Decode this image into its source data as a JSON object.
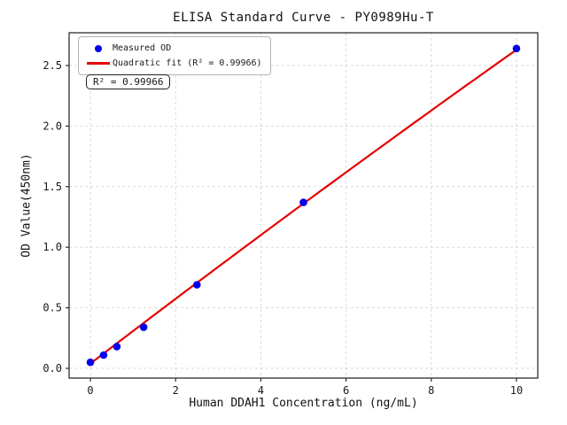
{
  "chart_data": {
    "type": "scatter",
    "title": "ELISA Standard Curve - PY0989Hu-T",
    "xlabel": "Human DDAH1 Concentration (ng/mL)",
    "ylabel": "OD Value(450nm)",
    "xlim": [
      -0.5,
      10.5
    ],
    "ylim": [
      -0.08,
      2.77
    ],
    "xticks": [
      "0",
      "2",
      "4",
      "6",
      "8",
      "10"
    ],
    "xtick_values": [
      0,
      2,
      4,
      6,
      8,
      10
    ],
    "yticks": [
      "0.0",
      "0.5",
      "1.0",
      "1.5",
      "2.0",
      "2.5"
    ],
    "ytick_values": [
      0,
      0.5,
      1.0,
      1.5,
      2.0,
      2.5
    ],
    "grid": true,
    "grid_style": "dashed",
    "legend_position": "upper-left",
    "series": [
      {
        "name": "Measured OD",
        "kind": "scatter",
        "color": "#0000ee",
        "x": [
          0,
          0.31,
          0.62,
          1.25,
          2.5,
          5,
          10
        ],
        "y": [
          0.05,
          0.11,
          0.18,
          0.34,
          0.69,
          1.37,
          2.64
        ]
      },
      {
        "name": "Quadratic fit (R² = 0.99966)",
        "kind": "line",
        "color": "#e60000",
        "fit": {
          "a": -0.001,
          "b": 0.269,
          "c": 0.04
        },
        "x_range": [
          0,
          10
        ]
      }
    ],
    "legend": [
      {
        "label": "Measured OD",
        "marker": "dot",
        "color": "#0000ee"
      },
      {
        "label": "Quadratic fit (R² = 0.99966)",
        "marker": "line",
        "color": "#e60000"
      }
    ],
    "annotation": "R² = 0.99966",
    "r_squared": 0.99966,
    "colors": {
      "marker": "#0000ee",
      "fit_line": "#e60000",
      "grid": "#d9d9d9",
      "spine": "#2e2e2e",
      "text": "#1a1a1a",
      "background": "#ffffff"
    }
  }
}
